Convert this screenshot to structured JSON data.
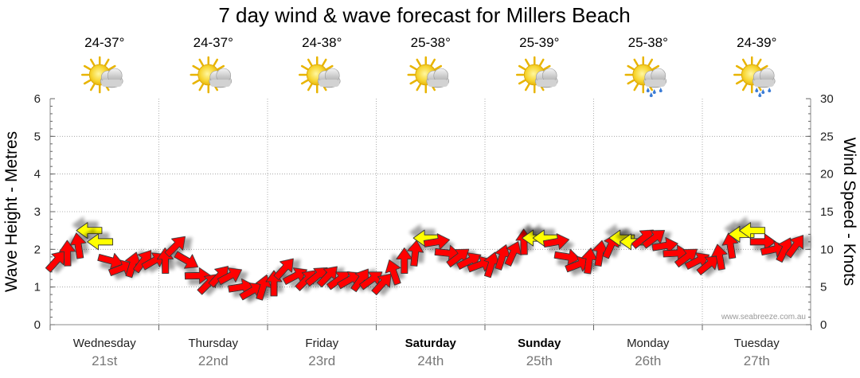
{
  "chart_data": {
    "type": "line",
    "title": "7 day wind & wave forecast for Millers Beach",
    "ylabel": "Wave Height - Metres",
    "y2label": "Wind Speed - Knots",
    "ylim": [
      0,
      6
    ],
    "y2lim": [
      0,
      30
    ],
    "yticks": [
      "0",
      "1",
      "2",
      "3",
      "4",
      "5",
      "6"
    ],
    "y2ticks": [
      "0",
      "5",
      "10",
      "15",
      "20",
      "25",
      "30"
    ],
    "grid": true,
    "credit": "www.seabreeze.com.au",
    "days": [
      {
        "name": "Wednesday",
        "date": "21st",
        "temp": "24-37°",
        "icon": "partly-cloudy-icon",
        "bold": false
      },
      {
        "name": "Thursday",
        "date": "22nd",
        "temp": "24-37°",
        "icon": "partly-cloudy-icon",
        "bold": false
      },
      {
        "name": "Friday",
        "date": "23rd",
        "temp": "24-38°",
        "icon": "partly-cloudy-icon",
        "bold": false
      },
      {
        "name": "Saturday",
        "date": "24th",
        "temp": "25-38°",
        "icon": "partly-cloudy-icon",
        "bold": true
      },
      {
        "name": "Sunday",
        "date": "25th",
        "temp": "25-39°",
        "icon": "partly-cloudy-icon",
        "bold": true
      },
      {
        "name": "Monday",
        "date": "26th",
        "temp": "25-38°",
        "icon": "showers-icon",
        "bold": false
      },
      {
        "name": "Tuesday",
        "date": "27th",
        "temp": "24-39°",
        "icon": "showers-icon",
        "bold": false
      }
    ],
    "series": [
      {
        "name": "Wind Speed (knots)",
        "x_unit": "days",
        "x": [
          0.0,
          0.1,
          0.2,
          0.3,
          0.4,
          0.5,
          0.6,
          0.7,
          0.8,
          0.9,
          1.0,
          1.1,
          1.2,
          1.3,
          1.4,
          1.5,
          1.6,
          1.7,
          1.8,
          1.9,
          2.0,
          2.1,
          2.2,
          2.3,
          2.4,
          2.5,
          2.6,
          2.7,
          2.8,
          2.9,
          3.0,
          3.1,
          3.2,
          3.3,
          3.4,
          3.5,
          3.6,
          3.7,
          3.8,
          3.9,
          4.0,
          4.1,
          4.2,
          4.3,
          4.4,
          4.5,
          4.6,
          4.7,
          4.8,
          4.9,
          5.0,
          5.1,
          5.2,
          5.3,
          5.4,
          5.5,
          5.6,
          5.7,
          5.8,
          5.9,
          6.0,
          6.1,
          6.2,
          6.3,
          6.4,
          6.5,
          6.6,
          6.7,
          6.8
        ],
        "values": [
          8.5,
          9.5,
          10.5,
          12.5,
          11.0,
          8.5,
          7.5,
          8.0,
          8.5,
          8.5,
          8.5,
          10.5,
          8.5,
          6.5,
          5.5,
          6.5,
          6.5,
          5.0,
          4.5,
          5.0,
          5.5,
          7.5,
          6.5,
          6.0,
          6.5,
          6.5,
          6.0,
          6.0,
          6.0,
          6.0,
          5.5,
          7.0,
          8.5,
          9.5,
          11.5,
          11.0,
          9.5,
          9.0,
          8.5,
          8.0,
          8.0,
          9.0,
          9.5,
          11.0,
          11.5,
          11.5,
          11.0,
          9.0,
          8.0,
          8.5,
          9.5,
          10.5,
          11.5,
          11.0,
          11.5,
          11.5,
          10.5,
          9.5,
          9.0,
          8.5,
          8.0,
          9.0,
          10.5,
          12.0,
          12.5,
          11.0,
          10.0,
          10.0,
          10.5
        ],
        "strong": [
          false,
          false,
          false,
          true,
          true,
          false,
          false,
          false,
          false,
          false,
          false,
          false,
          false,
          false,
          false,
          false,
          false,
          false,
          false,
          false,
          false,
          false,
          false,
          false,
          false,
          false,
          false,
          false,
          false,
          false,
          false,
          false,
          false,
          false,
          true,
          false,
          false,
          false,
          false,
          false,
          false,
          false,
          false,
          false,
          true,
          true,
          false,
          false,
          false,
          false,
          false,
          false,
          true,
          true,
          false,
          false,
          false,
          false,
          false,
          false,
          false,
          false,
          false,
          true,
          true,
          false,
          false,
          false,
          false
        ]
      }
    ]
  }
}
